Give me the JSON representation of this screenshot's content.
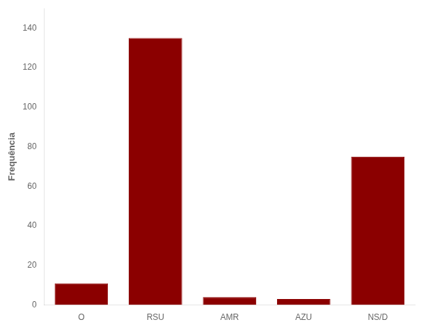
{
  "chart_data": {
    "type": "bar",
    "ylabel": "Frequência",
    "categories": [
      "O",
      "RSU",
      "AMR",
      "AZU",
      "NS/D"
    ],
    "values": [
      11,
      135,
      4,
      3,
      75
    ],
    "color": "#8B0000",
    "ylim": [
      0,
      150
    ],
    "yticks": [
      0,
      20,
      40,
      60,
      80,
      100,
      120,
      140
    ],
    "grid": false
  }
}
